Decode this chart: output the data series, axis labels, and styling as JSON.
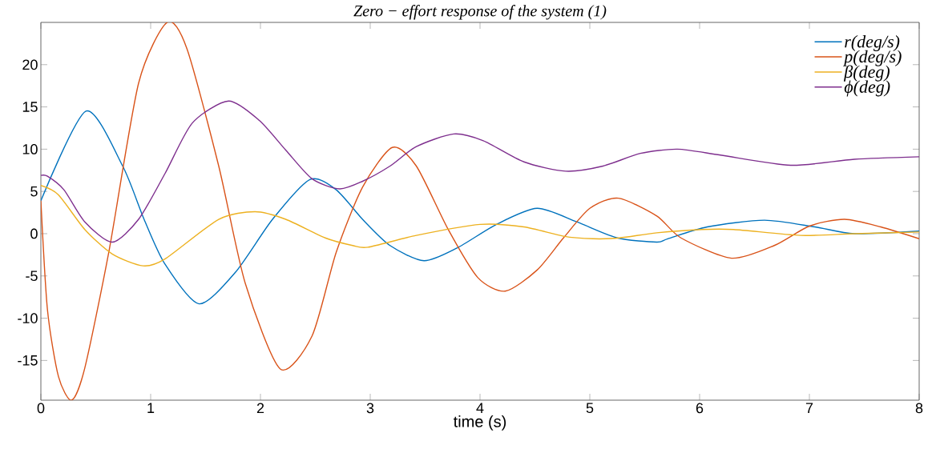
{
  "chart_data": {
    "type": "line",
    "title": "Zero − effort response of the system (1)",
    "xlabel": "time (s)",
    "xlim": [
      0,
      8
    ],
    "ylim": [
      -19.7,
      25
    ],
    "xticks": [
      0,
      1,
      2,
      3,
      4,
      5,
      6,
      7,
      8
    ],
    "yticks": [
      -15,
      -10,
      -5,
      0,
      5,
      10,
      15,
      20
    ],
    "grid": false,
    "legend": "top right",
    "marker": "none",
    "line_style": "solid",
    "series": [
      {
        "name": "r(deg/s)",
        "color": "#0072bd",
        "x": [
          0,
          0.41,
          0.745,
          0.94,
          1.13,
          1.44,
          1.77,
          2.11,
          2.45,
          2.69,
          2.93,
          3.18,
          3.49,
          3.79,
          4.15,
          4.52,
          4.88,
          5.25,
          5.61,
          5.71,
          6.07,
          6.59,
          7.05,
          7.41,
          8.0
        ],
        "values": [
          3.9,
          14.5,
          8.0,
          1.7,
          -3.6,
          -8.3,
          -4.6,
          1.7,
          6.4,
          5.2,
          1.7,
          -1.4,
          -3.2,
          -1.7,
          1.1,
          3.0,
          1.4,
          -0.5,
          -1.0,
          -0.6,
          0.8,
          1.6,
          0.8,
          0.0,
          0.3
        ]
      },
      {
        "name": "p(deg/s)",
        "color": "#d95319",
        "x": [
          0,
          0.06,
          0.16,
          0.28,
          0.4,
          0.62,
          0.89,
          1.15,
          1.33,
          1.62,
          1.86,
          2.18,
          2.47,
          2.69,
          2.93,
          3.2,
          3.42,
          3.71,
          3.98,
          4.23,
          4.52,
          4.76,
          5.0,
          5.26,
          5.61,
          5.83,
          6.29,
          6.68,
          7.0,
          7.32,
          7.65,
          8.0
        ],
        "values": [
          3.9,
          -9.0,
          -16.9,
          -19.7,
          -15.9,
          -2.1,
          17.8,
          25.0,
          21.9,
          8.0,
          -5.8,
          -16.0,
          -12.1,
          -2.2,
          5.5,
          10.2,
          8.0,
          0.5,
          -5.2,
          -6.8,
          -4.3,
          -0.5,
          3.0,
          4.2,
          2.1,
          -0.5,
          -2.9,
          -1.4,
          0.9,
          1.7,
          0.8,
          -0.6
        ]
      },
      {
        "name": "β(deg)",
        "color": "#edb120",
        "x": [
          0,
          0.16,
          0.4,
          0.65,
          0.93,
          1.13,
          1.62,
          1.95,
          2.23,
          2.59,
          2.84,
          2.98,
          3.42,
          4.0,
          4.4,
          4.76,
          5.03,
          5.27,
          5.61,
          6.02,
          6.31,
          6.92,
          7.41,
          8.0
        ],
        "values": [
          5.7,
          4.6,
          0.5,
          -2.4,
          -3.8,
          -3.0,
          1.7,
          2.6,
          1.7,
          -0.5,
          -1.4,
          -1.6,
          -0.2,
          1.1,
          0.8,
          -0.3,
          -0.6,
          -0.5,
          0.1,
          0.5,
          0.5,
          -0.2,
          0.0,
          0.2
        ]
      },
      {
        "name": "ϕ(deg)",
        "color": "#7e2f8e",
        "x": [
          0,
          0.06,
          0.21,
          0.4,
          0.65,
          0.89,
          1.13,
          1.38,
          1.71,
          1.99,
          2.23,
          2.47,
          2.72,
          2.93,
          3.18,
          3.42,
          3.76,
          4.03,
          4.4,
          4.78,
          5.12,
          5.46,
          5.8,
          6.19,
          6.83,
          7.41,
          8.0
        ],
        "values": [
          6.9,
          6.8,
          5.2,
          1.4,
          -1.0,
          1.7,
          7.1,
          13.1,
          15.7,
          13.4,
          9.9,
          6.5,
          5.3,
          6.2,
          8.0,
          10.3,
          11.8,
          11.0,
          8.5,
          7.4,
          8.0,
          9.5,
          10.0,
          9.3,
          8.1,
          8.8,
          9.1
        ]
      }
    ]
  }
}
